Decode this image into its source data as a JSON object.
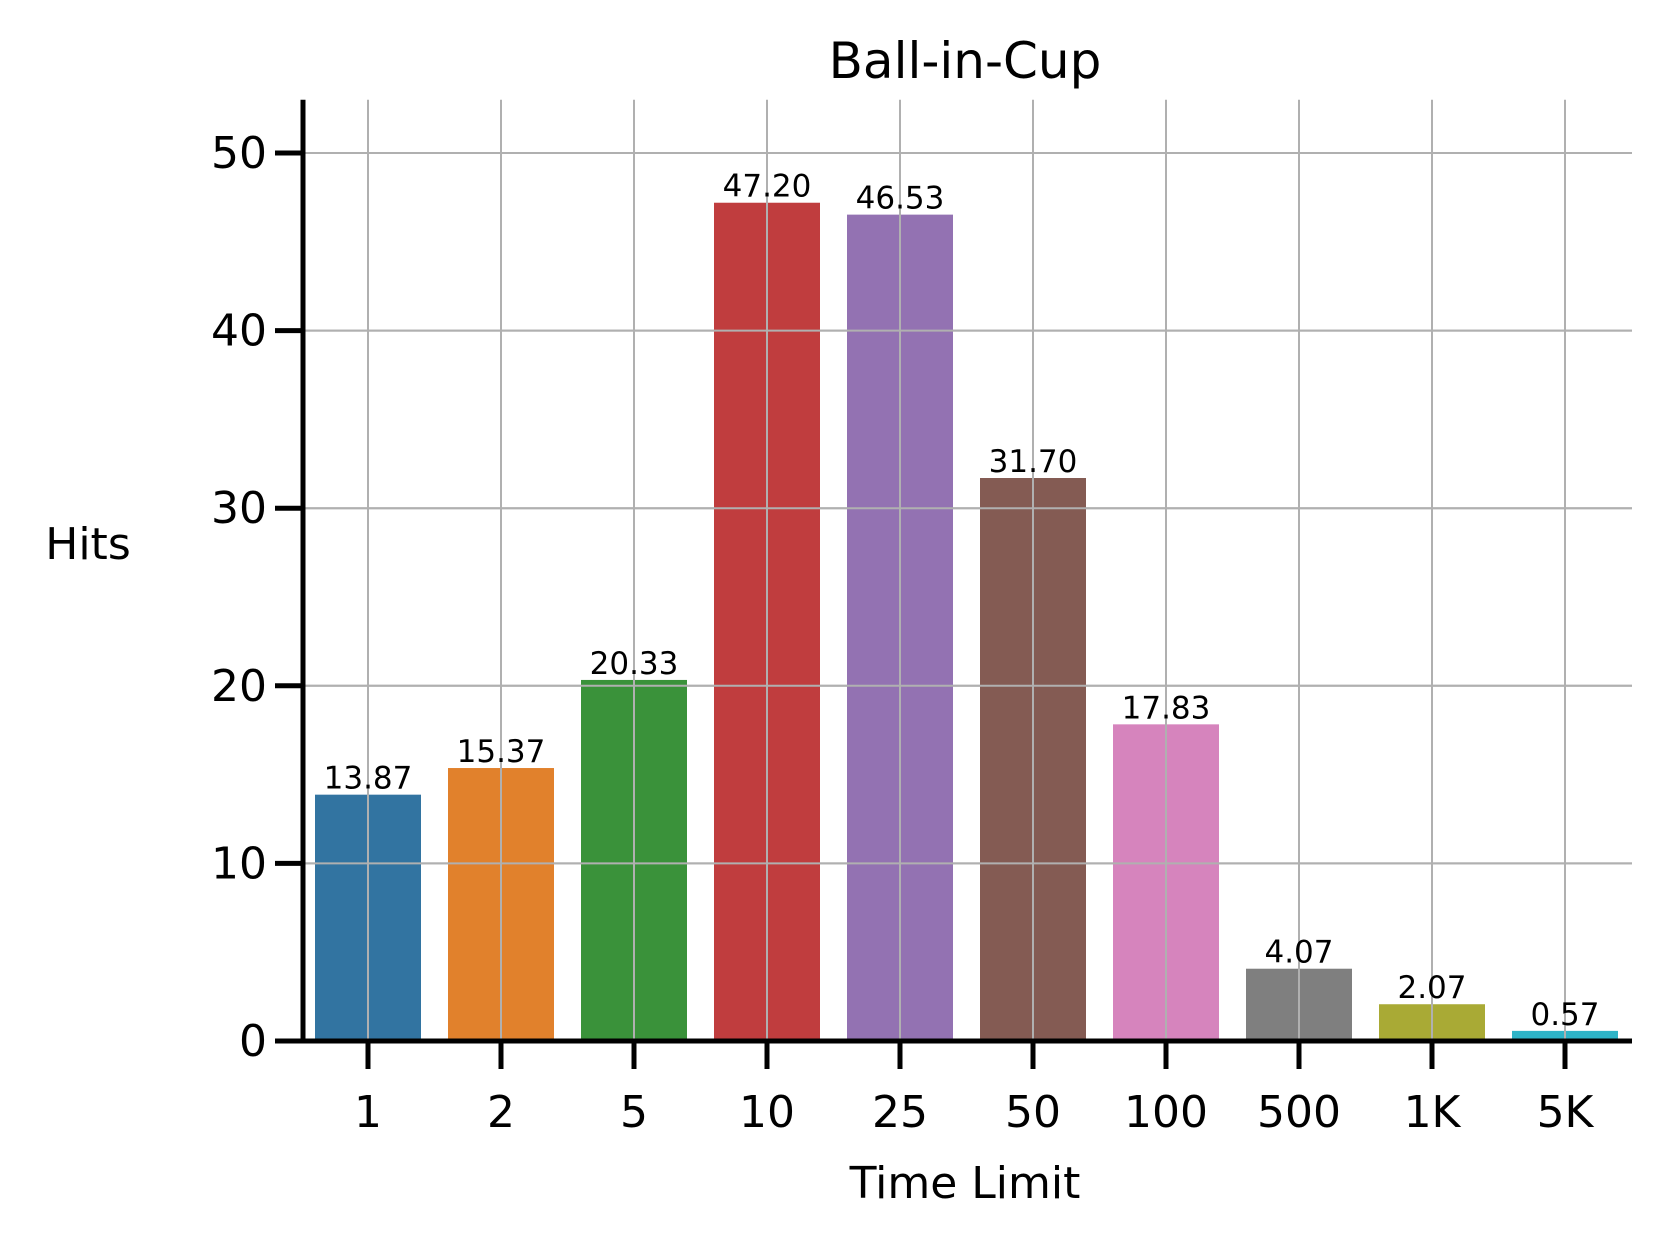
{
  "chart_data": {
    "type": "bar",
    "title": "Ball-in-Cup",
    "xlabel": "Time Limit",
    "ylabel": "Hits",
    "categories": [
      "1",
      "2",
      "5",
      "10",
      "25",
      "50",
      "100",
      "500",
      "1K",
      "5K"
    ],
    "values": [
      13.87,
      15.37,
      20.33,
      47.2,
      46.53,
      31.7,
      17.83,
      4.07,
      2.07,
      0.57
    ],
    "value_labels": [
      "13.87",
      "15.37",
      "20.33",
      "47.20",
      "46.53",
      "31.70",
      "17.83",
      "4.07",
      "2.07",
      "0.57"
    ],
    "colors": [
      "#3274a1",
      "#e1812c",
      "#3a923a",
      "#c03d3e",
      "#9372b2",
      "#845b53",
      "#d684bd",
      "#7f7f7f",
      "#a9aa35",
      "#2eb4c7"
    ],
    "ylim": [
      0,
      53
    ],
    "yticks": [
      0,
      10,
      20,
      30,
      40,
      50
    ],
    "ytick_labels": [
      "0",
      "10",
      "20",
      "30",
      "40",
      "50"
    ],
    "grid": true,
    "legend": "none"
  }
}
